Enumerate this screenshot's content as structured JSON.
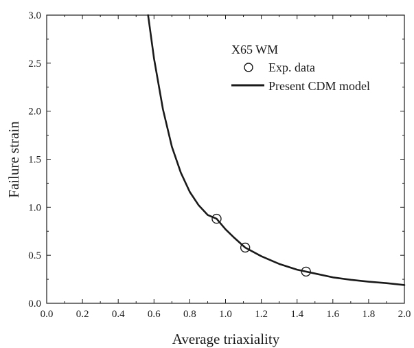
{
  "chart_data": {
    "type": "scatter",
    "title": "",
    "xlabel": "Average triaxiality",
    "ylabel": "Failure strain",
    "xlim": [
      0.0,
      2.0
    ],
    "ylim": [
      0.0,
      3.0
    ],
    "x_ticks": [
      "0.0",
      "0.2",
      "0.4",
      "0.6",
      "0.8",
      "1.0",
      "1.2",
      "1.4",
      "1.6",
      "1.8",
      "2.0"
    ],
    "y_ticks": [
      "0.0",
      "0.5",
      "1.0",
      "1.5",
      "2.0",
      "2.5",
      "3.0"
    ],
    "grid": false,
    "legend": {
      "placement": "top-right",
      "title": "X65 WM",
      "entries": [
        {
          "label": "Exp. data",
          "marker": "open-circle"
        },
        {
          "label": "Present CDM model",
          "marker": "line"
        }
      ]
    },
    "series": [
      {
        "name": "Exp. data",
        "kind": "scatter",
        "points": [
          {
            "x": 0.95,
            "y": 0.88
          },
          {
            "x": 1.11,
            "y": 0.58
          },
          {
            "x": 1.45,
            "y": 0.33
          }
        ]
      },
      {
        "name": "Present CDM model",
        "kind": "line",
        "points": [
          {
            "x": 0.567,
            "y": 3.0
          },
          {
            "x": 0.6,
            "y": 2.55
          },
          {
            "x": 0.65,
            "y": 2.02
          },
          {
            "x": 0.7,
            "y": 1.63
          },
          {
            "x": 0.75,
            "y": 1.36
          },
          {
            "x": 0.8,
            "y": 1.16
          },
          {
            "x": 0.85,
            "y": 1.02
          },
          {
            "x": 0.9,
            "y": 0.92
          },
          {
            "x": 0.95,
            "y": 0.88
          },
          {
            "x": 1.0,
            "y": 0.77
          },
          {
            "x": 1.05,
            "y": 0.68
          },
          {
            "x": 1.11,
            "y": 0.58
          },
          {
            "x": 1.2,
            "y": 0.49
          },
          {
            "x": 1.3,
            "y": 0.41
          },
          {
            "x": 1.4,
            "y": 0.35
          },
          {
            "x": 1.5,
            "y": 0.31
          },
          {
            "x": 1.6,
            "y": 0.27
          },
          {
            "x": 1.7,
            "y": 0.245
          },
          {
            "x": 1.8,
            "y": 0.225
          },
          {
            "x": 1.9,
            "y": 0.21
          },
          {
            "x": 2.0,
            "y": 0.19
          }
        ]
      }
    ]
  }
}
